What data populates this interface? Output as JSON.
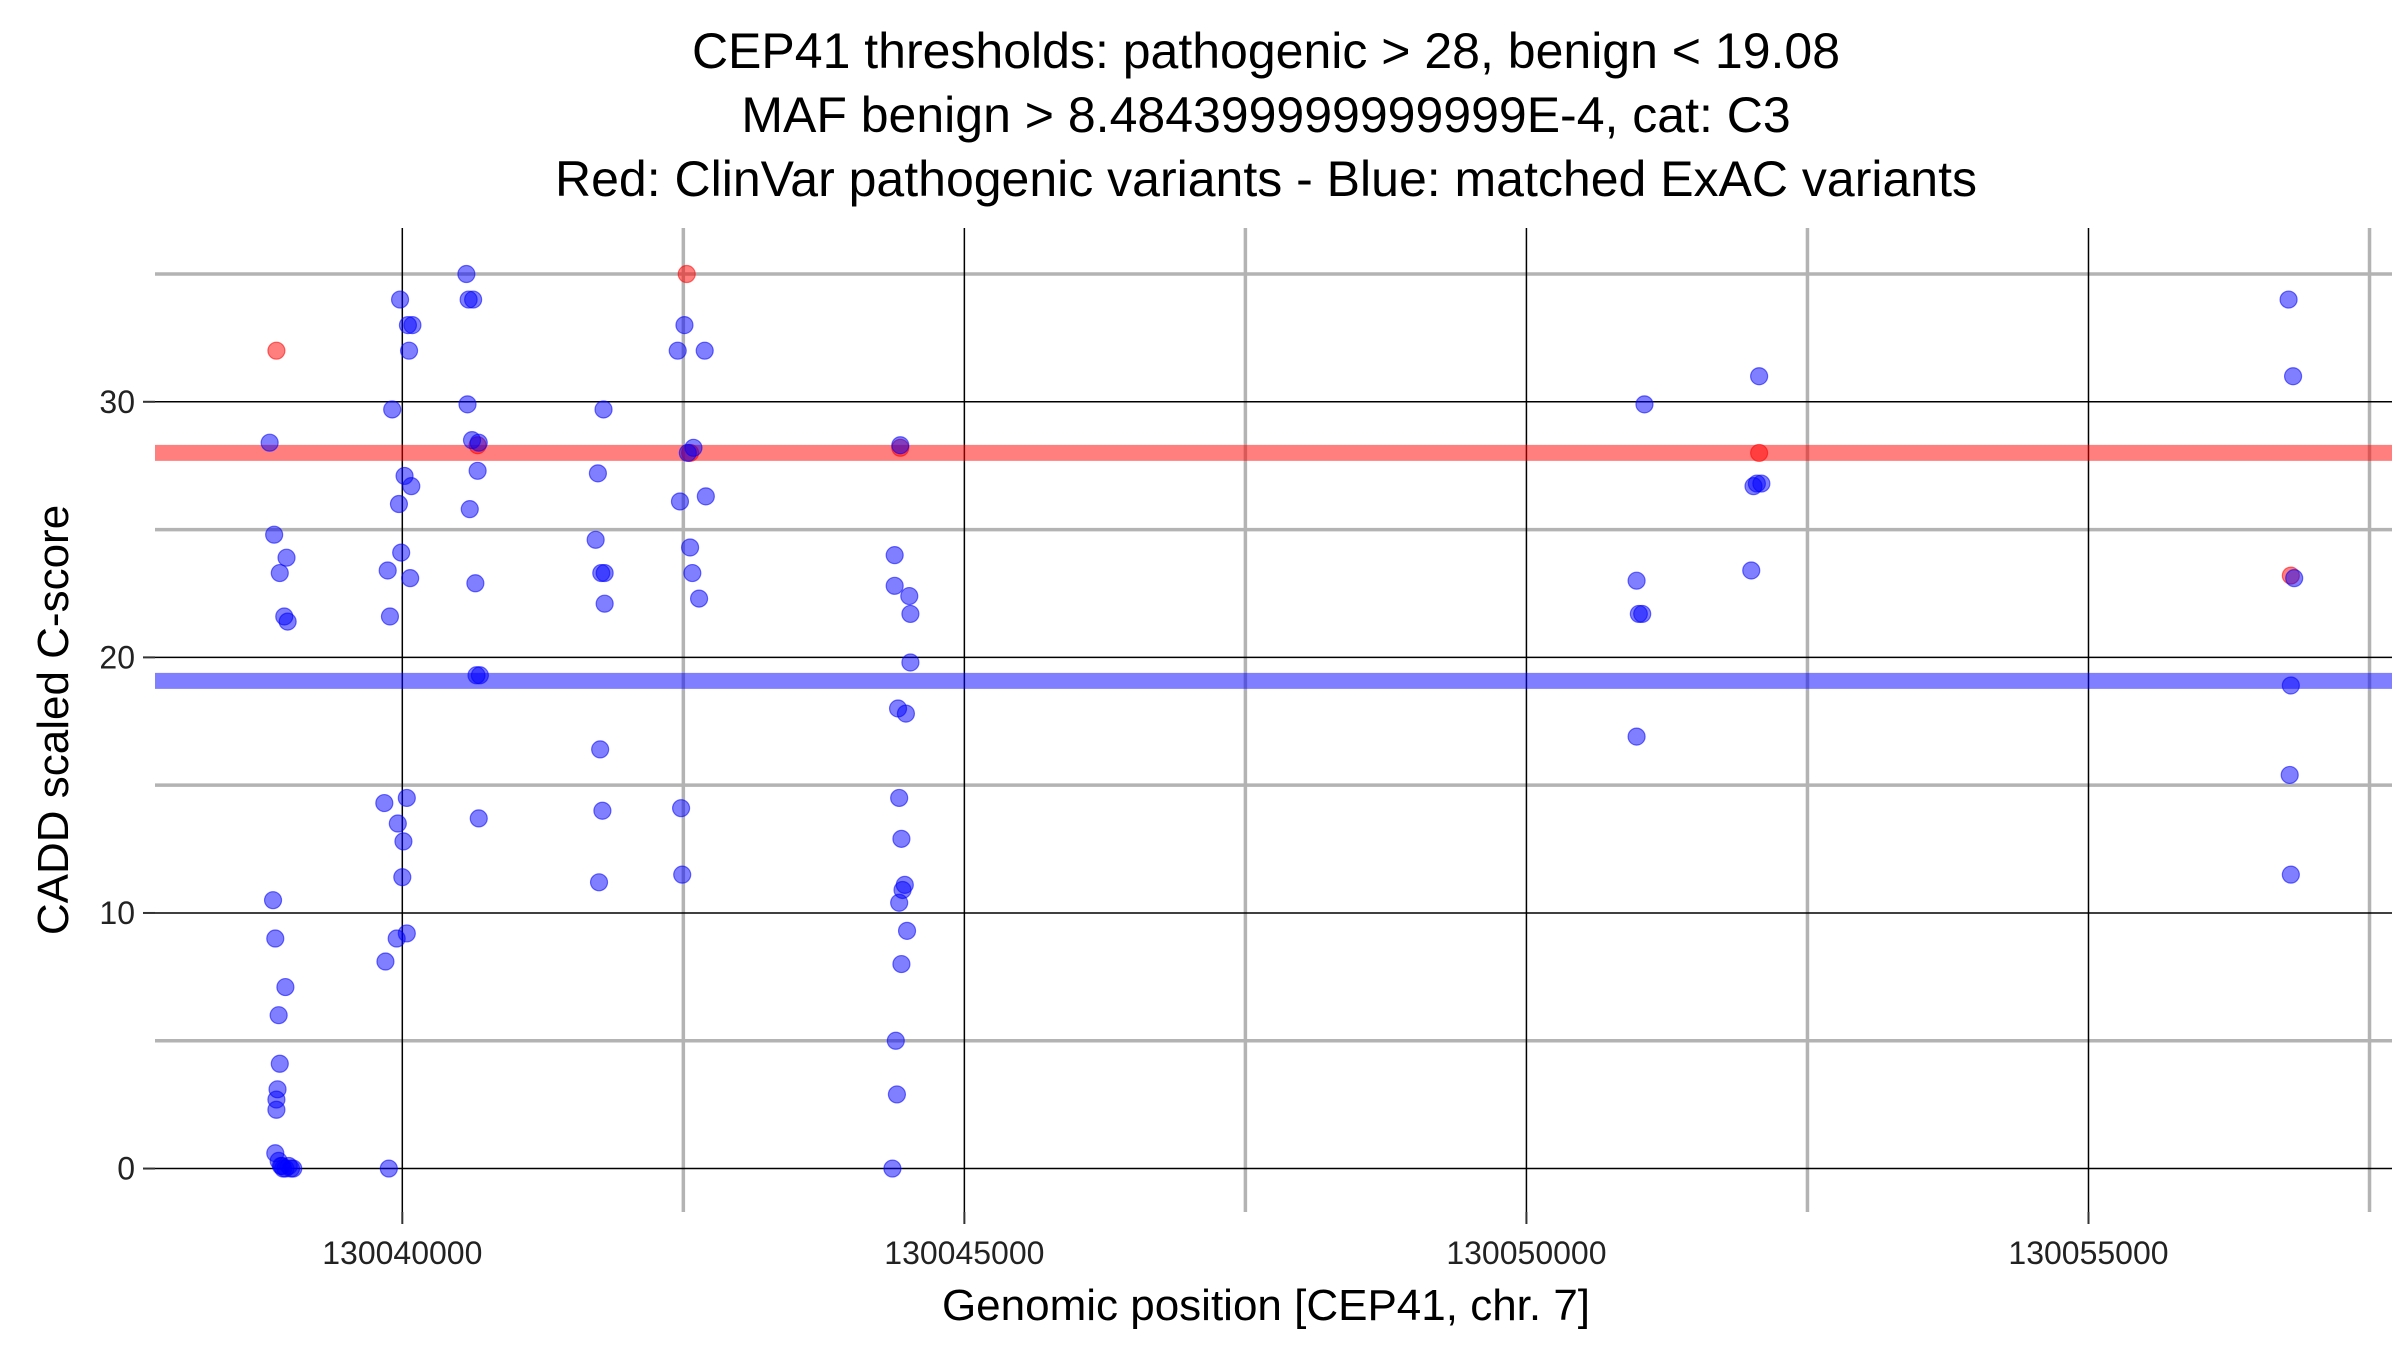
{
  "chart_data": {
    "type": "scatter",
    "title_lines": [
      "CEP41 thresholds: pathogenic > 28, benign < 19.08",
      "MAF benign > 8.484399999999999E-4, cat: C3",
      "Red: ClinVar pathogenic variants - Blue: matched ExAC variants"
    ],
    "xlabel": "Genomic position [CEP41, chr. 7]",
    "ylabel": "CADD scaled C-score",
    "xlim": [
      130037800,
      130057700
    ],
    "ylim": [
      -1.7,
      36.8
    ],
    "x_ticks": [
      130040000,
      130045000,
      130050000,
      130055000
    ],
    "x_tick_labels": [
      "130040000",
      "130045000",
      "130050000",
      "130055000"
    ],
    "x_minor_grid": [
      130042500,
      130047500,
      130052500,
      130057500
    ],
    "y_ticks": [
      0,
      10,
      20,
      30
    ],
    "y_tick_labels": [
      "0",
      "10",
      "20",
      "30"
    ],
    "y_minor_grid": [
      5,
      15,
      25,
      35
    ],
    "grid": true,
    "thresholds": [
      {
        "name": "pathogenic",
        "y": 28,
        "color": "#ff0000"
      },
      {
        "name": "benign",
        "y": 19.08,
        "color": "#0000ff"
      }
    ],
    "series": [
      {
        "color": "#ff0000",
        "points": [
          [
            130038880,
            32.0
          ],
          [
            130040670,
            28.3
          ],
          [
            130042530,
            35.0
          ],
          [
            130042560,
            28.0
          ],
          [
            130044430,
            28.2
          ],
          [
            130052070,
            28.0
          ],
          [
            130056800,
            23.2
          ]
        ]
      },
      {
        "color": "#0000ff",
        "points": [
          [
            130038820,
            28.4
          ],
          [
            130038850,
            10.5
          ],
          [
            130038860,
            24.8
          ],
          [
            130038870,
            9.0
          ],
          [
            130038870,
            0.6
          ],
          [
            130038880,
            2.7
          ],
          [
            130038880,
            2.3
          ],
          [
            130038890,
            3.1
          ],
          [
            130038900,
            6.0
          ],
          [
            130038900,
            0.3
          ],
          [
            130038910,
            23.3
          ],
          [
            130038910,
            4.1
          ],
          [
            130038920,
            0.1
          ],
          [
            130038930,
            0.1
          ],
          [
            130038940,
            0.0
          ],
          [
            130038950,
            21.6
          ],
          [
            130038960,
            7.1
          ],
          [
            130038960,
            0.0
          ],
          [
            130038970,
            23.9
          ],
          [
            130038980,
            21.4
          ],
          [
            130038990,
            0.1
          ],
          [
            130039010,
            0.0
          ],
          [
            130039030,
            0.0
          ],
          [
            130039840,
            14.3
          ],
          [
            130039850,
            8.1
          ],
          [
            130039870,
            23.4
          ],
          [
            130039880,
            0.0
          ],
          [
            130039890,
            21.6
          ],
          [
            130039910,
            29.7
          ],
          [
            130039950,
            9.0
          ],
          [
            130039960,
            13.5
          ],
          [
            130039970,
            26.0
          ],
          [
            130039980,
            34.0
          ],
          [
            130039990,
            24.1
          ],
          [
            130040000,
            11.4
          ],
          [
            130040010,
            12.8
          ],
          [
            130040020,
            27.1
          ],
          [
            130040040,
            14.5
          ],
          [
            130040040,
            9.2
          ],
          [
            130040050,
            33.0
          ],
          [
            130040060,
            32.0
          ],
          [
            130040070,
            23.1
          ],
          [
            130040080,
            26.7
          ],
          [
            130040090,
            33.0
          ],
          [
            130040570,
            35.0
          ],
          [
            130040580,
            29.9
          ],
          [
            130040590,
            34.0
          ],
          [
            130040600,
            25.8
          ],
          [
            130040620,
            28.5
          ],
          [
            130040630,
            34.0
          ],
          [
            130040650,
            22.9
          ],
          [
            130040660,
            19.3
          ],
          [
            130040670,
            27.3
          ],
          [
            130040680,
            28.4
          ],
          [
            130040680,
            13.7
          ],
          [
            130040690,
            19.3
          ],
          [
            130041720,
            24.6
          ],
          [
            130041740,
            27.2
          ],
          [
            130041750,
            11.2
          ],
          [
            130041760,
            16.4
          ],
          [
            130041770,
            23.3
          ],
          [
            130041780,
            14.0
          ],
          [
            130041790,
            29.7
          ],
          [
            130041800,
            22.1
          ],
          [
            130041800,
            23.3
          ],
          [
            130042450,
            32.0
          ],
          [
            130042470,
            26.1
          ],
          [
            130042480,
            14.1
          ],
          [
            130042490,
            11.5
          ],
          [
            130042510,
            33.0
          ],
          [
            130042540,
            28.0
          ],
          [
            130042560,
            24.3
          ],
          [
            130042580,
            23.3
          ],
          [
            130042590,
            28.2
          ],
          [
            130042640,
            22.3
          ],
          [
            130042690,
            32.0
          ],
          [
            130042700,
            26.3
          ],
          [
            130044360,
            0.0
          ],
          [
            130044380,
            24.0
          ],
          [
            130044380,
            22.8
          ],
          [
            130044390,
            5.0
          ],
          [
            130044400,
            2.9
          ],
          [
            130044410,
            18.0
          ],
          [
            130044420,
            14.5
          ],
          [
            130044420,
            10.4
          ],
          [
            130044430,
            28.3
          ],
          [
            130044440,
            12.9
          ],
          [
            130044440,
            8.0
          ],
          [
            130044450,
            10.9
          ],
          [
            130044470,
            11.1
          ],
          [
            130044480,
            17.8
          ],
          [
            130044490,
            9.3
          ],
          [
            130044510,
            22.4
          ],
          [
            130044520,
            21.7
          ],
          [
            130044520,
            19.8
          ],
          [
            130050980,
            23.0
          ],
          [
            130050980,
            16.9
          ],
          [
            130051000,
            21.7
          ],
          [
            130051030,
            21.7
          ],
          [
            130051050,
            29.9
          ],
          [
            130052000,
            23.4
          ],
          [
            130052020,
            26.7
          ],
          [
            130052050,
            26.8
          ],
          [
            130052070,
            31.0
          ],
          [
            130052090,
            26.8
          ],
          [
            130056780,
            34.0
          ],
          [
            130056790,
            15.4
          ],
          [
            130056800,
            18.9
          ],
          [
            130056800,
            11.5
          ],
          [
            130056820,
            31.0
          ],
          [
            130056830,
            23.1
          ]
        ]
      }
    ]
  }
}
